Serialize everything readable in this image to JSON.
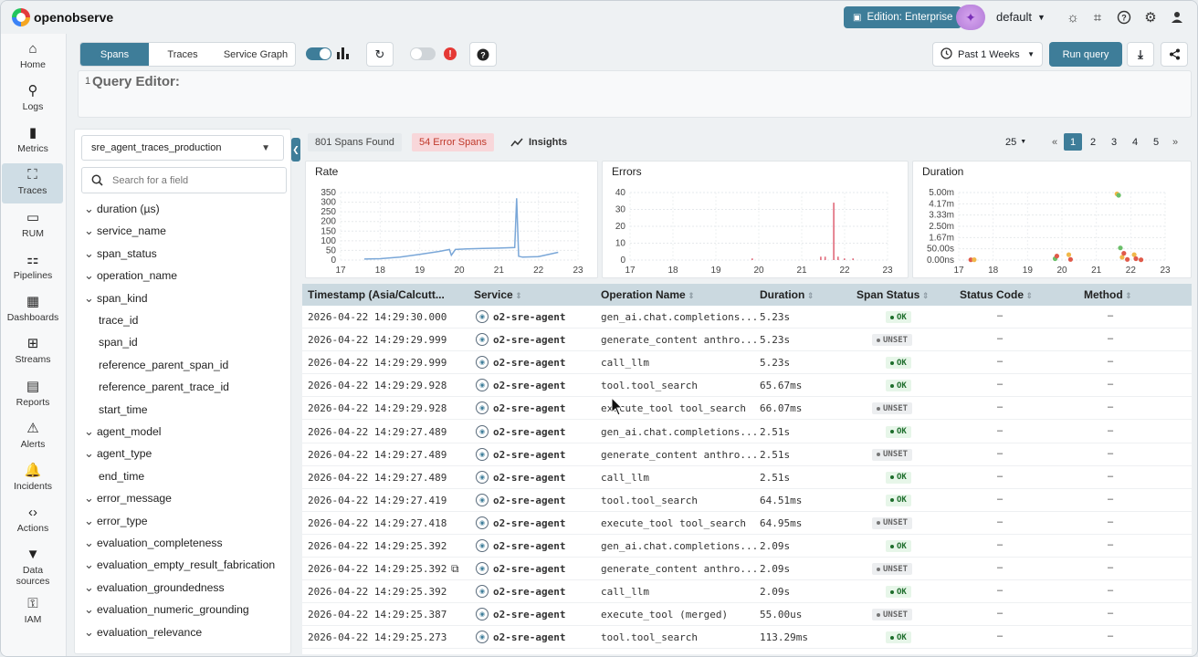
{
  "app": {
    "name": "openobserve",
    "edition_label": "Edition: Enterprise",
    "org": "default"
  },
  "sidebar": {
    "items": [
      {
        "label": "Home",
        "icon": "home-icon"
      },
      {
        "label": "Logs",
        "icon": "search-icon"
      },
      {
        "label": "Metrics",
        "icon": "bar-chart-icon"
      },
      {
        "label": "Traces",
        "icon": "traces-icon",
        "active": true
      },
      {
        "label": "RUM",
        "icon": "monitor-icon"
      },
      {
        "label": "Pipelines",
        "icon": "pipeline-icon"
      },
      {
        "label": "Dashboards",
        "icon": "dashboard-icon"
      },
      {
        "label": "Streams",
        "icon": "grid-icon"
      },
      {
        "label": "Reports",
        "icon": "report-icon"
      },
      {
        "label": "Alerts",
        "icon": "alert-triangle-icon"
      },
      {
        "label": "Incidents",
        "icon": "bell-icon"
      },
      {
        "label": "Actions",
        "icon": "code-icon"
      },
      {
        "label": "Data sources",
        "icon": "filter-icon"
      },
      {
        "label": "IAM",
        "icon": "user-lock-icon"
      }
    ]
  },
  "toolbar": {
    "tabs": [
      "Spans",
      "Traces",
      "Service Graph"
    ],
    "active_tab": "Spans",
    "time_range": "Past 1 Weeks",
    "run_query": "Run query"
  },
  "query_editor": {
    "line_number": "1",
    "placeholder": "Query Editor:"
  },
  "fields": {
    "stream": "sre_agent_traces_production",
    "search_placeholder": "Search for a field",
    "items": [
      {
        "name": "duration (µs)",
        "expandable": true
      },
      {
        "name": "service_name",
        "expandable": true
      },
      {
        "name": "span_status",
        "expandable": true
      },
      {
        "name": "operation_name",
        "expandable": true
      },
      {
        "name": "span_kind",
        "expandable": true
      },
      {
        "name": "trace_id",
        "expandable": false
      },
      {
        "name": "span_id",
        "expandable": false
      },
      {
        "name": "reference_parent_span_id",
        "expandable": false
      },
      {
        "name": "reference_parent_trace_id",
        "expandable": false
      },
      {
        "name": "start_time",
        "expandable": false
      },
      {
        "name": "agent_model",
        "expandable": true
      },
      {
        "name": "agent_type",
        "expandable": true
      },
      {
        "name": "end_time",
        "expandable": false
      },
      {
        "name": "error_message",
        "expandable": true
      },
      {
        "name": "error_type",
        "expandable": true
      },
      {
        "name": "evaluation_completeness",
        "expandable": true
      },
      {
        "name": "evaluation_empty_result_fabrication",
        "expandable": true
      },
      {
        "name": "evaluation_groundedness",
        "expandable": true
      },
      {
        "name": "evaluation_numeric_grounding",
        "expandable": true
      },
      {
        "name": "evaluation_relevance",
        "expandable": true
      }
    ]
  },
  "summary": {
    "spans_found": "801 Spans Found",
    "error_spans": "54 Error Spans",
    "insights": "Insights",
    "page_size": "25",
    "pages": [
      "1",
      "2",
      "3",
      "4",
      "5"
    ],
    "current_page": "1"
  },
  "chart_data": [
    {
      "type": "line",
      "title": "Rate",
      "x_ticks": [
        "17",
        "18",
        "19",
        "20",
        "21",
        "22",
        "23"
      ],
      "y_ticks": [
        "0",
        "50",
        "100",
        "150",
        "200",
        "250",
        "300",
        "350"
      ],
      "ylim": [
        0,
        350
      ],
      "xlim": [
        17,
        23
      ],
      "x": [
        17.6,
        18.0,
        18.5,
        19.0,
        19.5,
        19.75,
        19.8,
        19.9,
        20.2,
        20.6,
        21.0,
        21.4,
        21.45,
        21.5,
        21.6,
        22.0,
        22.5
      ],
      "y": [
        5,
        7,
        15,
        30,
        45,
        55,
        25,
        55,
        58,
        60,
        62,
        65,
        320,
        20,
        15,
        18,
        40
      ],
      "color": "#7aa7d8"
    },
    {
      "type": "bar",
      "title": "Errors",
      "x_ticks": [
        "17",
        "18",
        "19",
        "20",
        "21",
        "22",
        "23"
      ],
      "y_ticks": [
        "0",
        "10",
        "20",
        "30",
        "40"
      ],
      "ylim": [
        0,
        40
      ],
      "xlim": [
        17,
        23
      ],
      "x": [
        19.85,
        21.45,
        21.55,
        21.75,
        21.85,
        22.0,
        22.2
      ],
      "y": [
        1,
        2,
        2,
        34,
        2,
        1,
        1
      ],
      "color": "#e06a7a"
    },
    {
      "type": "scatter",
      "title": "Duration",
      "x_ticks": [
        "17",
        "18",
        "19",
        "20",
        "21",
        "22",
        "23"
      ],
      "y_ticks": [
        "0.00ns",
        "50.00s",
        "1.67m",
        "2.50m",
        "3.33m",
        "4.17m",
        "5.00m"
      ],
      "ylim": [
        0,
        5
      ],
      "xlim": [
        17,
        23
      ],
      "x": [
        17.35,
        17.45,
        19.8,
        19.85,
        20.2,
        20.25,
        21.7,
        21.75,
        21.8,
        21.9,
        22.1,
        22.15,
        22.3,
        21.6,
        21.65
      ],
      "y": [
        0.02,
        0.03,
        0.1,
        0.3,
        0.4,
        0.05,
        0.9,
        0.2,
        0.5,
        0.05,
        0.4,
        0.1,
        0.02,
        4.9,
        4.8
      ],
      "color": "#e05a4a"
    }
  ],
  "table": {
    "columns": [
      "Timestamp (Asia/Calcutt...",
      "Service",
      "Operation Name",
      "Duration",
      "Span Status",
      "Status Code",
      "Method"
    ],
    "rows": [
      {
        "ts": "2026-04-22 14:29:30.000",
        "service": "o2-sre-agent",
        "op": "gen_ai.chat.completions...",
        "dur": "5.23s",
        "status": "OK",
        "code": "–",
        "method": "–"
      },
      {
        "ts": "2026-04-22 14:29:29.999",
        "service": "o2-sre-agent",
        "op": "generate_content anthro...",
        "dur": "5.23s",
        "status": "UNSET",
        "code": "–",
        "method": "–"
      },
      {
        "ts": "2026-04-22 14:29:29.999",
        "service": "o2-sre-agent",
        "op": "call_llm",
        "dur": "5.23s",
        "status": "OK",
        "code": "–",
        "method": "–"
      },
      {
        "ts": "2026-04-22 14:29:29.928",
        "service": "o2-sre-agent",
        "op": "tool.tool_search",
        "dur": "65.67ms",
        "status": "OK",
        "code": "–",
        "method": "–"
      },
      {
        "ts": "2026-04-22 14:29:29.928",
        "service": "o2-sre-agent",
        "op": "execute_tool tool_search",
        "dur": "66.07ms",
        "status": "UNSET",
        "code": "–",
        "method": "–"
      },
      {
        "ts": "2026-04-22 14:29:27.489",
        "service": "o2-sre-agent",
        "op": "gen_ai.chat.completions...",
        "dur": "2.51s",
        "status": "OK",
        "code": "–",
        "method": "–"
      },
      {
        "ts": "2026-04-22 14:29:27.489",
        "service": "o2-sre-agent",
        "op": "generate_content anthro...",
        "dur": "2.51s",
        "status": "UNSET",
        "code": "–",
        "method": "–"
      },
      {
        "ts": "2026-04-22 14:29:27.489",
        "service": "o2-sre-agent",
        "op": "call_llm",
        "dur": "2.51s",
        "status": "OK",
        "code": "–",
        "method": "–"
      },
      {
        "ts": "2026-04-22 14:29:27.419",
        "service": "o2-sre-agent",
        "op": "tool.tool_search",
        "dur": "64.51ms",
        "status": "OK",
        "code": "–",
        "method": "–"
      },
      {
        "ts": "2026-04-22 14:29:27.418",
        "service": "o2-sre-agent",
        "op": "execute_tool tool_search",
        "dur": "64.95ms",
        "status": "UNSET",
        "code": "–",
        "method": "–"
      },
      {
        "ts": "2026-04-22 14:29:25.392",
        "service": "o2-sre-agent",
        "op": "gen_ai.chat.completions...",
        "dur": "2.09s",
        "status": "OK",
        "code": "–",
        "method": "–"
      },
      {
        "ts": "2026-04-22 14:29:25.392",
        "service": "o2-sre-agent",
        "op": "generate_content anthro...",
        "dur": "2.09s",
        "status": "UNSET",
        "code": "–",
        "method": "–",
        "copy_icon": true
      },
      {
        "ts": "2026-04-22 14:29:25.392",
        "service": "o2-sre-agent",
        "op": "call_llm",
        "dur": "2.09s",
        "status": "OK",
        "code": "–",
        "method": "–"
      },
      {
        "ts": "2026-04-22 14:29:25.387",
        "service": "o2-sre-agent",
        "op": "execute_tool (merged)",
        "dur": "55.00us",
        "status": "UNSET",
        "code": "–",
        "method": "–"
      },
      {
        "ts": "2026-04-22 14:29:25.273",
        "service": "o2-sre-agent",
        "op": "tool.tool_search",
        "dur": "113.29ms",
        "status": "OK",
        "code": "–",
        "method": "–"
      }
    ]
  },
  "colors": {
    "primary": "#3e7d99",
    "ok": "#1d6d2b",
    "error_badge_bg": "#f8d7da",
    "error_badge_text": "#c0392b",
    "header_bg": "#cbd9e0"
  }
}
